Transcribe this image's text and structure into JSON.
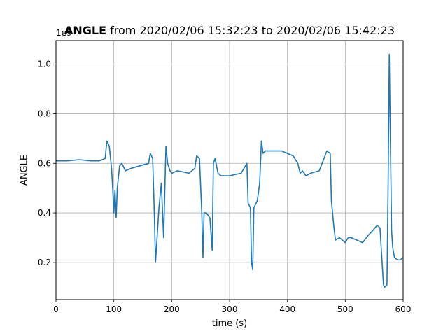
{
  "title": {
    "bold": "ANGLE",
    "rest": " from 2020/02/06 15:32:23 to 2020/02/06 15:42:23"
  },
  "axis_offset": "1e9",
  "colors": {
    "line": "#1f77b4",
    "grid": "#b0b0b0",
    "axes": "#000000"
  },
  "chart_data": {
    "type": "line",
    "title": "ANGLE from 2020/02/06 15:32:23 to 2020/02/06 15:42:23",
    "xlabel": "time (s)",
    "ylabel": "ANGLE",
    "y_offset_label": "1e9",
    "xlim": [
      0,
      600
    ],
    "ylim": [
      0.05,
      1.095
    ],
    "xticks": [
      0,
      100,
      200,
      300,
      400,
      500,
      600
    ],
    "yticks": [
      0.2,
      0.4,
      0.6,
      0.8,
      1.0
    ],
    "ytick_labels": [
      "0.2",
      "0.4",
      "0.6",
      "0.8",
      "1.0"
    ],
    "grid": true,
    "series": [
      {
        "x": [
          0,
          20,
          40,
          60,
          75,
          85,
          88,
          92,
          96,
          98,
          100,
          102,
          104,
          106,
          110,
          114,
          120,
          130,
          145,
          160,
          163,
          167,
          170,
          172,
          174,
          178,
          182,
          186,
          190,
          193,
          197,
          200,
          210,
          230,
          240,
          243,
          248,
          252,
          254,
          256,
          260,
          266,
          270,
          272,
          275,
          280,
          285,
          300,
          320,
          330,
          332,
          336,
          338,
          340,
          342,
          348,
          352,
          355,
          358,
          362,
          370,
          390,
          410,
          418,
          422,
          426,
          432,
          440,
          455,
          465,
          468,
          474,
          476,
          480,
          483,
          490,
          500,
          505,
          510,
          520,
          530,
          540,
          548,
          555,
          560,
          566,
          568,
          572,
          574,
          576,
          578,
          580,
          582,
          585,
          590,
          595,
          600
        ],
        "y": [
          0.61,
          0.61,
          0.615,
          0.61,
          0.61,
          0.62,
          0.69,
          0.67,
          0.58,
          0.5,
          0.4,
          0.49,
          0.38,
          0.5,
          0.59,
          0.6,
          0.57,
          0.58,
          0.59,
          0.6,
          0.64,
          0.62,
          0.4,
          0.2,
          0.27,
          0.42,
          0.52,
          0.3,
          0.67,
          0.6,
          0.57,
          0.56,
          0.57,
          0.56,
          0.58,
          0.63,
          0.62,
          0.4,
          0.22,
          0.4,
          0.4,
          0.38,
          0.25,
          0.6,
          0.62,
          0.56,
          0.55,
          0.55,
          0.56,
          0.6,
          0.44,
          0.42,
          0.2,
          0.17,
          0.42,
          0.45,
          0.52,
          0.69,
          0.64,
          0.65,
          0.65,
          0.65,
          0.63,
          0.6,
          0.56,
          0.57,
          0.55,
          0.56,
          0.57,
          0.63,
          0.65,
          0.64,
          0.45,
          0.35,
          0.29,
          0.3,
          0.28,
          0.3,
          0.3,
          0.29,
          0.28,
          0.31,
          0.33,
          0.35,
          0.34,
          0.11,
          0.1,
          0.11,
          0.5,
          1.04,
          0.7,
          0.33,
          0.26,
          0.22,
          0.21,
          0.21,
          0.22
        ]
      }
    ]
  }
}
